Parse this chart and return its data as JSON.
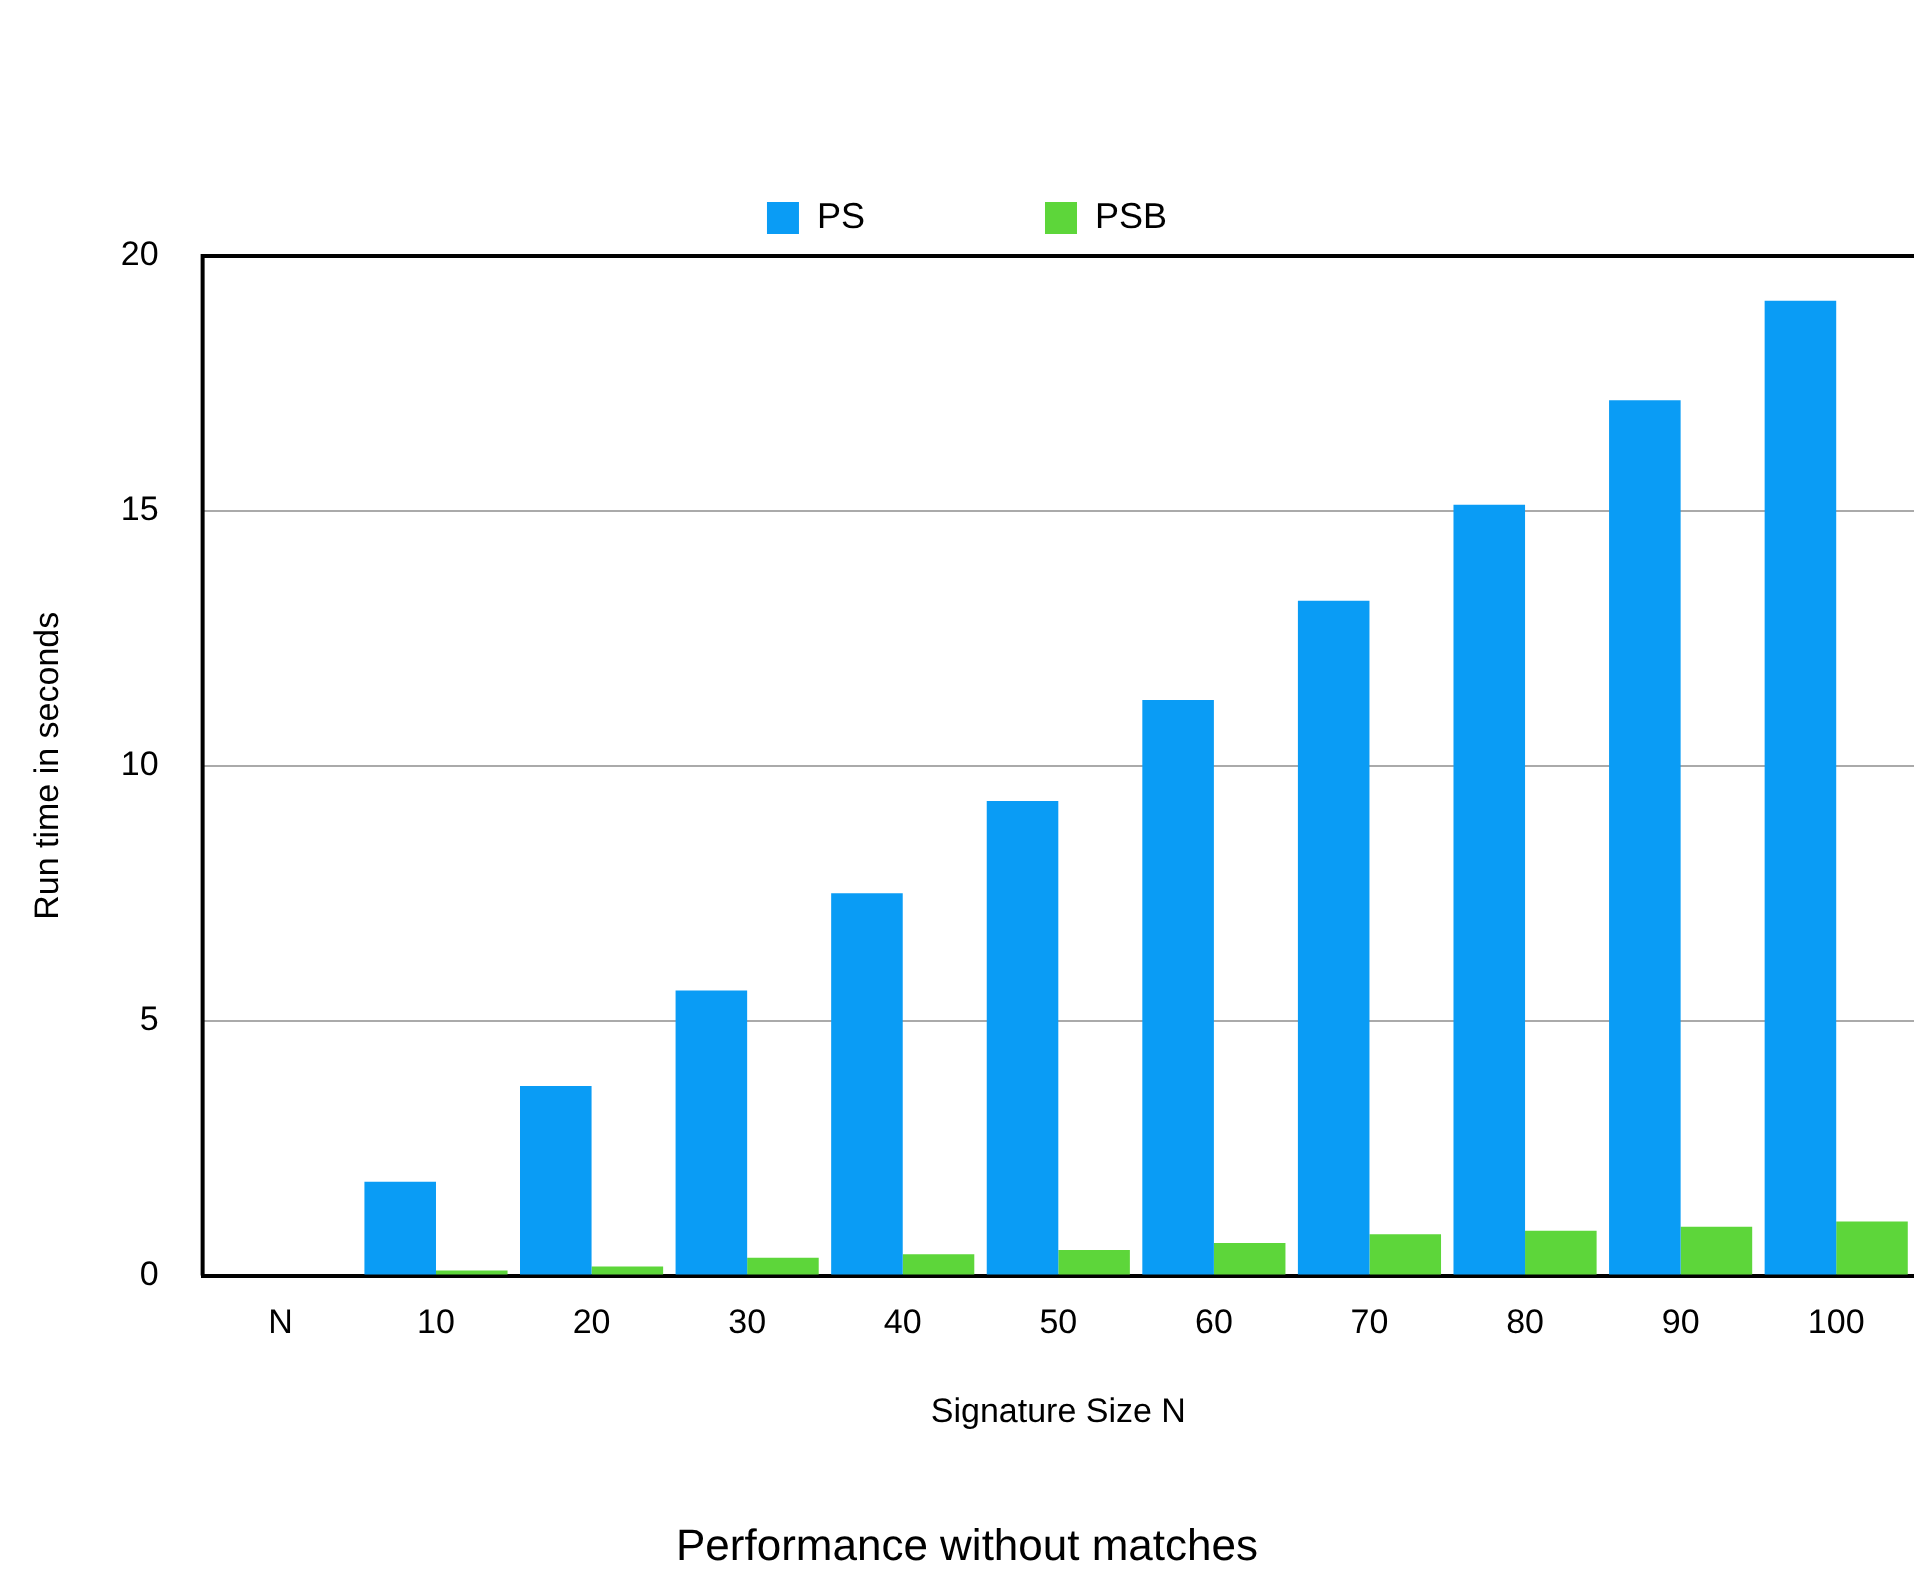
{
  "chart_data": {
    "type": "bar",
    "title": "Performance without matches",
    "xlabel": "Signature Size N",
    "ylabel": "Run time in seconds",
    "categories": [
      "N",
      "10",
      "20",
      "30",
      "40",
      "50",
      "60",
      "70",
      "80",
      "90",
      "100"
    ],
    "series": [
      {
        "name": "PS",
        "color": "#0a9cf5",
        "values": [
          null,
          1.84,
          3.72,
          5.59,
          7.5,
          9.31,
          11.29,
          13.24,
          15.12,
          17.17,
          19.12
        ]
      },
      {
        "name": "PSB",
        "color": "#5dd63a",
        "values": [
          null,
          0.1,
          0.18,
          0.35,
          0.42,
          0.5,
          0.64,
          0.81,
          0.88,
          0.96,
          1.06
        ]
      }
    ],
    "ylim": [
      0,
      20
    ],
    "yticks": [
      0,
      5,
      10,
      15,
      20
    ],
    "grid": "y",
    "legend": "top"
  }
}
